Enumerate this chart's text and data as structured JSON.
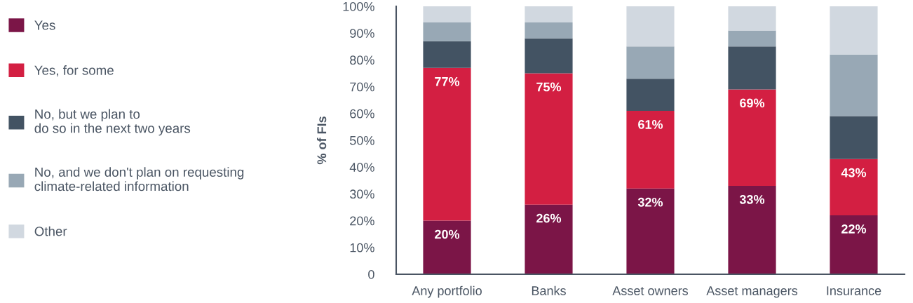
{
  "chart_data": {
    "type": "bar",
    "stacked": true,
    "ylabel": "% of FIs",
    "categories": [
      "Any portfolio",
      "Banks",
      "Asset owners",
      "Asset managers",
      "Insurance"
    ],
    "series": [
      {
        "name": "Yes",
        "color": "#7b1547",
        "values": [
          20,
          26,
          32,
          33,
          22
        ],
        "value_labels": [
          "20%",
          "26%",
          "32%",
          "33%",
          "22%"
        ]
      },
      {
        "name": "Yes, for some",
        "color": "#d31f42",
        "values": [
          57,
          49,
          29,
          36,
          21
        ]
      },
      {
        "name": "No, but we plan to\ndo so in the next two years",
        "color": "#435363",
        "values": [
          10,
          13,
          12,
          16,
          16
        ]
      },
      {
        "name": "No, and we don't plan on requesting\nclimate-related information",
        "color": "#98a8b5",
        "values": [
          7,
          6,
          12,
          6,
          23
        ]
      },
      {
        "name": "Other",
        "color": "#d1d8e0",
        "values": [
          6,
          6,
          15,
          9,
          18
        ]
      }
    ],
    "ylim": [
      0,
      100
    ],
    "yticks": [
      {
        "value": 0,
        "label": "0"
      },
      {
        "value": 10,
        "label": "10%"
      },
      {
        "value": 20,
        "label": "20%"
      },
      {
        "value": 30,
        "label": "30%"
      },
      {
        "value": 40,
        "label": "40%"
      },
      {
        "value": 50,
        "label": "50%"
      },
      {
        "value": 60,
        "label": "60%"
      },
      {
        "value": 70,
        "label": "70%"
      },
      {
        "value": 80,
        "label": "80%"
      },
      {
        "value": 90,
        "label": "90%"
      },
      {
        "value": 100,
        "label": "100%"
      }
    ],
    "annotations": [
      {
        "text": "77%",
        "x": "Any portfolio",
        "y": 77
      },
      {
        "text": "75%",
        "x": "Banks",
        "y": 75
      },
      {
        "text": "61%",
        "x": "Asset owners",
        "y": 61
      },
      {
        "text": "69%",
        "x": "Asset managers",
        "y": 69
      },
      {
        "text": "43%",
        "x": "Insurance",
        "y": 43
      }
    ],
    "grid": false,
    "legend": "left"
  }
}
